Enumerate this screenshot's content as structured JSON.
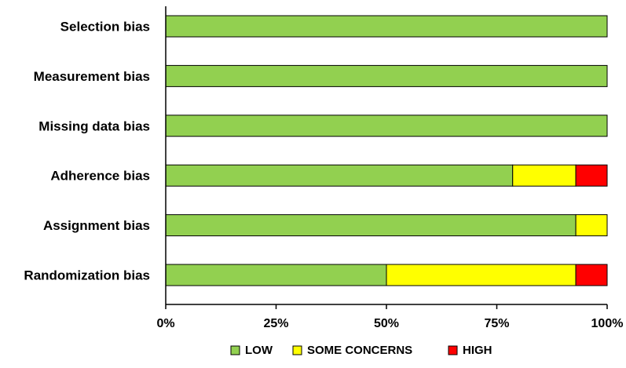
{
  "chart_data": {
    "type": "bar",
    "orientation": "horizontal",
    "stacked": true,
    "categories": [
      "Selection bias",
      "Measurement bias",
      "Missing data bias",
      "Adherence bias",
      "Assignment bias",
      "Randomization bias"
    ],
    "series": [
      {
        "name": "LOW",
        "color": "#92D050",
        "values": [
          100,
          100,
          100,
          78.6,
          92.9,
          50
        ]
      },
      {
        "name": "SOME  CONCERNS",
        "color": "#FFFF00",
        "values": [
          0,
          0,
          0,
          14.3,
          7.1,
          42.9
        ]
      },
      {
        "name": "HIGH",
        "color": "#FF0000",
        "values": [
          0,
          0,
          0,
          7.1,
          0,
          7.1
        ]
      }
    ],
    "x_ticks": [
      "0%",
      "25%",
      "50%",
      "75%",
      "100%"
    ],
    "xlim": [
      0,
      100
    ],
    "unit": "%",
    "legend_position": "bottom",
    "grid": false
  }
}
